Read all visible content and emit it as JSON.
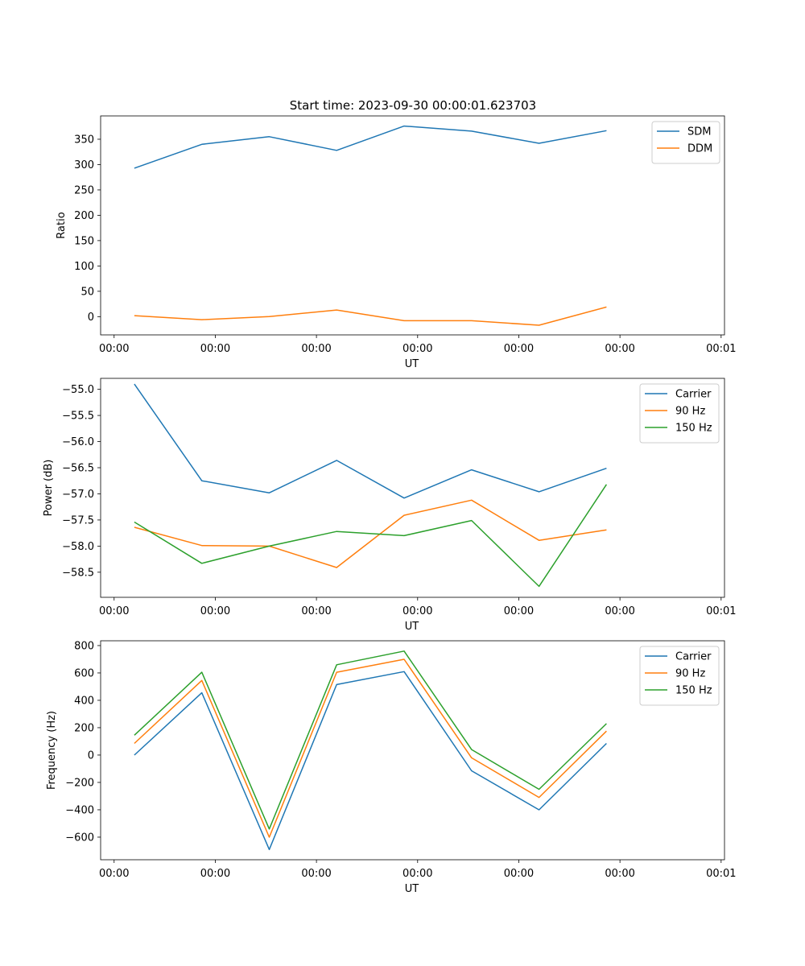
{
  "figure_title": "Start time: 2023-09-30 00:00:01.623703",
  "colors": {
    "blue": "#1f77b4",
    "orange": "#ff7f0e",
    "green": "#2ca02c"
  },
  "chart_data": [
    {
      "type": "line",
      "title": "Start time: 2023-09-30 00:00:01.623703",
      "xlabel": "UT",
      "ylabel": "Ratio",
      "x": [
        1,
        2,
        3,
        4,
        5,
        6,
        7,
        8
      ],
      "xlim": [
        0.5,
        9.75
      ],
      "xticks": [
        0.7,
        2.2,
        3.7,
        5.2,
        6.7,
        8.2,
        9.7
      ],
      "xtick_labels": [
        "00:00",
        "00:00",
        "00:00",
        "00:00",
        "00:00",
        "00:00",
        "00:01"
      ],
      "ylim": [
        -36,
        396
      ],
      "yticks": [
        0,
        50,
        100,
        150,
        200,
        250,
        300,
        350
      ],
      "ytick_labels": [
        "0",
        "50",
        "100",
        "150",
        "200",
        "250",
        "300",
        "350"
      ],
      "legend": "top-right",
      "series": [
        {
          "name": "SDM",
          "color": "#1f77b4",
          "values": [
            293,
            340,
            355,
            328,
            376,
            366,
            342,
            367
          ]
        },
        {
          "name": "DDM",
          "color": "#ff7f0e",
          "values": [
            2,
            -6,
            0,
            13,
            -8,
            -8,
            -17,
            19
          ]
        }
      ]
    },
    {
      "type": "line",
      "title": "",
      "xlabel": "UT",
      "ylabel": "Power (dB)",
      "x": [
        1,
        2,
        3,
        4,
        5,
        6,
        7,
        8
      ],
      "xlim": [
        0.5,
        9.75
      ],
      "xticks": [
        0.7,
        2.2,
        3.7,
        5.2,
        6.7,
        8.2,
        9.7
      ],
      "xtick_labels": [
        "00:00",
        "00:00",
        "00:00",
        "00:00",
        "00:00",
        "00:00",
        "00:01"
      ],
      "ylim": [
        -58.98,
        -54.79
      ],
      "yticks": [
        -55.0,
        -55.5,
        -56.0,
        -56.5,
        -57.0,
        -57.5,
        -58.0,
        -58.5
      ],
      "ytick_labels": [
        "−55.0",
        "−55.5",
        "−56.0",
        "−56.5",
        "−57.0",
        "−57.5",
        "−58.0",
        "−58.5"
      ],
      "legend": "top-right",
      "series": [
        {
          "name": "Carrier",
          "color": "#1f77b4",
          "values": [
            -54.9,
            -56.75,
            -56.98,
            -56.36,
            -57.08,
            -56.54,
            -56.96,
            -56.51
          ]
        },
        {
          "name": "90 Hz",
          "color": "#ff7f0e",
          "values": [
            -57.64,
            -57.99,
            -58.0,
            -58.41,
            -57.41,
            -57.12,
            -57.89,
            -57.69
          ]
        },
        {
          "name": "150 Hz",
          "color": "#2ca02c",
          "values": [
            -57.54,
            -58.33,
            -58.0,
            -57.72,
            -57.8,
            -57.51,
            -58.77,
            -56.82
          ]
        }
      ]
    },
    {
      "type": "line",
      "title": "",
      "xlabel": "UT",
      "ylabel": "Frequency (Hz)",
      "x": [
        1,
        2,
        3,
        4,
        5,
        6,
        7,
        8
      ],
      "xlim": [
        0.5,
        9.75
      ],
      "xticks": [
        0.7,
        2.2,
        3.7,
        5.2,
        6.7,
        8.2,
        9.7
      ],
      "xtick_labels": [
        "00:00",
        "00:00",
        "00:00",
        "00:00",
        "00:00",
        "00:00",
        "00:01"
      ],
      "ylim": [
        -765,
        835
      ],
      "yticks": [
        -600,
        -400,
        -200,
        0,
        200,
        400,
        600,
        800
      ],
      "ytick_labels": [
        "−600",
        "−400",
        "−200",
        "0",
        "200",
        "400",
        "600",
        "800"
      ],
      "legend": "top-right",
      "series": [
        {
          "name": "Carrier",
          "color": "#1f77b4",
          "values": [
            0,
            455,
            -690,
            515,
            610,
            -115,
            -400,
            85
          ]
        },
        {
          "name": "90 Hz",
          "color": "#ff7f0e",
          "values": [
            85,
            545,
            -600,
            605,
            700,
            -20,
            -310,
            175
          ]
        },
        {
          "name": "150 Hz",
          "color": "#2ca02c",
          "values": [
            145,
            605,
            -540,
            660,
            760,
            40,
            -250,
            230
          ]
        }
      ]
    }
  ]
}
